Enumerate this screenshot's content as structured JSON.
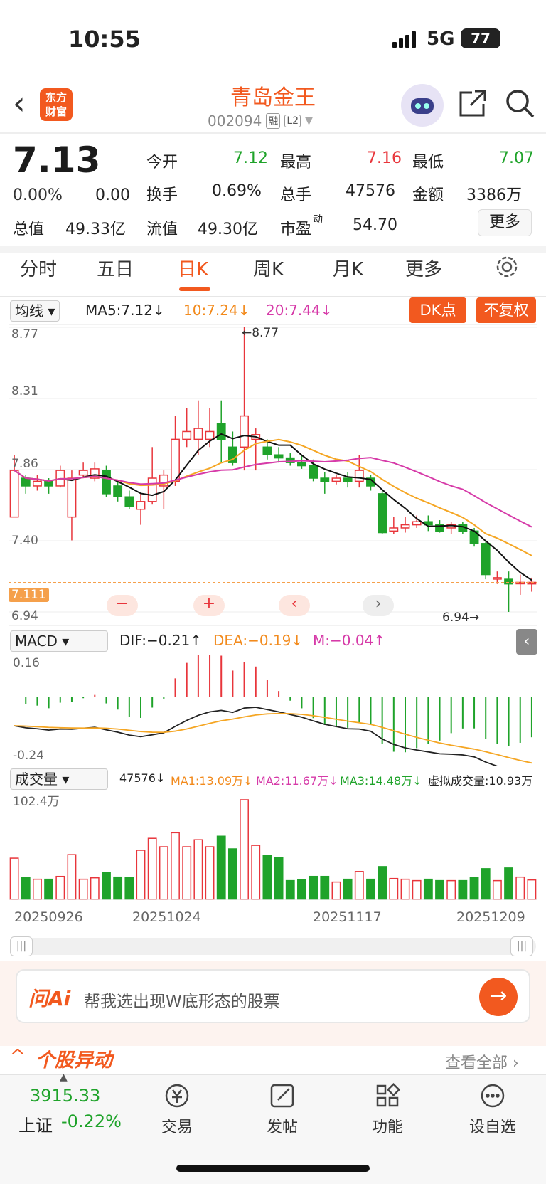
{
  "status_bar": {
    "time": "10:55",
    "network": "5G",
    "battery": "77"
  },
  "header": {
    "logo_line1": "东方",
    "logo_line2": "财富",
    "title": "青岛金王",
    "code": "002094",
    "tag1": "融",
    "tag2": "L2"
  },
  "quote": {
    "price": "7.13",
    "change_pct": "0.00%",
    "change": "0.00",
    "open_label": "今开",
    "open": "7.12",
    "high_label": "最高",
    "high": "7.16",
    "low_label": "最低",
    "low": "7.07",
    "turnover_label": "换手",
    "turnover": "0.69%",
    "volume_label": "总手",
    "volume": "47576",
    "amount_label": "金额",
    "amount": "3386万",
    "mcap_label": "总值",
    "mcap": "49.33亿",
    "float_label": "流值",
    "float_cap": "49.30亿",
    "pe_label": "市盈",
    "pe_sup": "动",
    "pe": "54.70",
    "more_button": "更多"
  },
  "tabs": [
    "分时",
    "五日",
    "日K",
    "周K",
    "月K",
    "更多"
  ],
  "active_tab": "日K",
  "ma_bar": {
    "select": "均线",
    "ma5": "MA5:7.12↓",
    "ma10": "10:7.24↓",
    "ma20": "20:7.44↓",
    "dk_button": "DK点",
    "fuquan_button": "不复权"
  },
  "kline_axis": {
    "y_top": "8.77",
    "y2": "8.31",
    "y3": "7.86",
    "y4": "7.40",
    "y_bottom": "6.94",
    "high_mark": "←8.77",
    "low_mark": "6.94→",
    "current_price_tag": "7.111"
  },
  "macd": {
    "select": "MACD",
    "dif": "DIF:−0.21↑",
    "dea": "DEA:−0.19↓",
    "m": "M:−0.04↑",
    "y_top": "0.16",
    "y_bottom": "-0.24"
  },
  "volume": {
    "select": "成交量",
    "value": "47576↓",
    "ma1": "MA1:13.09万↓",
    "ma2": "MA2:11.67万↓",
    "ma3": "MA3:14.48万↓",
    "virtual": "虚拟成交量:10.93万",
    "y_top": "102.4万"
  },
  "dates": [
    "20250926",
    "20251024",
    "20251117",
    "20251209"
  ],
  "colors": {
    "up": "#e8353b",
    "down": "#1fa32a",
    "ma5": "#111111",
    "ma10": "#f5a623",
    "ma20": "#d63aa8",
    "brand": "#f2591f"
  },
  "chart_data": {
    "type": "candlestick",
    "ylim": [
      6.94,
      8.77
    ],
    "candles": [
      [
        7.55,
        7.85,
        7.95,
        7.55
      ],
      [
        7.8,
        7.75,
        7.82,
        7.7
      ],
      [
        7.75,
        7.78,
        7.82,
        7.72
      ],
      [
        7.78,
        7.75,
        7.8,
        7.7
      ],
      [
        7.75,
        7.85,
        7.88,
        7.74
      ],
      [
        7.55,
        7.8,
        7.85,
        7.4
      ],
      [
        7.82,
        7.85,
        7.9,
        7.8
      ],
      [
        7.8,
        7.86,
        7.9,
        7.78
      ],
      [
        7.85,
        7.7,
        7.88,
        7.68
      ],
      [
        7.75,
        7.68,
        7.78,
        7.65
      ],
      [
        7.68,
        7.62,
        7.72,
        7.6
      ],
      [
        7.6,
        7.65,
        7.7,
        7.5
      ],
      [
        7.65,
        7.8,
        8.0,
        7.63
      ],
      [
        7.75,
        7.82,
        7.85,
        7.6
      ],
      [
        7.78,
        8.05,
        8.2,
        7.75
      ],
      [
        8.05,
        8.1,
        8.25,
        8.0
      ],
      [
        8.05,
        8.12,
        8.3,
        7.95
      ],
      [
        8.05,
        8.1,
        8.25,
        8.0
      ],
      [
        8.15,
        8.05,
        8.3,
        7.9
      ],
      [
        8.0,
        7.9,
        8.1,
        7.88
      ],
      [
        8.0,
        8.2,
        8.77,
        7.85
      ],
      [
        8.05,
        8.08,
        8.12,
        7.85
      ],
      [
        8.0,
        7.95,
        8.05,
        7.92
      ],
      [
        7.95,
        7.93,
        8.0,
        7.9
      ],
      [
        7.93,
        7.9,
        7.96,
        7.88
      ],
      [
        7.9,
        7.88,
        7.95,
        7.86
      ],
      [
        7.88,
        7.8,
        7.92,
        7.78
      ],
      [
        7.8,
        7.78,
        7.84,
        7.7
      ],
      [
        7.78,
        7.8,
        7.82,
        7.76
      ],
      [
        7.8,
        7.78,
        7.84,
        7.74
      ],
      [
        7.78,
        7.85,
        7.95,
        7.74
      ],
      [
        7.8,
        7.75,
        7.82,
        7.72
      ],
      [
        7.7,
        7.45,
        7.72,
        7.44
      ],
      [
        7.46,
        7.48,
        7.55,
        7.44
      ],
      [
        7.48,
        7.5,
        7.55,
        7.45
      ],
      [
        7.5,
        7.52,
        7.56,
        7.48
      ],
      [
        7.52,
        7.5,
        7.56,
        7.46
      ],
      [
        7.5,
        7.46,
        7.53,
        7.45
      ],
      [
        7.48,
        7.5,
        7.52,
        7.44
      ],
      [
        7.5,
        7.46,
        7.52,
        7.44
      ],
      [
        7.46,
        7.38,
        7.48,
        7.36
      ],
      [
        7.38,
        7.18,
        7.4,
        7.15
      ],
      [
        7.16,
        7.16,
        7.2,
        7.12
      ],
      [
        7.15,
        7.12,
        7.2,
        6.94
      ],
      [
        7.13,
        7.13,
        7.18,
        7.05
      ],
      [
        7.12,
        7.13,
        7.16,
        7.07
      ]
    ],
    "macd_min": -0.24,
    "macd_max": 0.16,
    "volume_max": "102.4万"
  },
  "ai_bar": {
    "brand": "问Ai",
    "placeholder": "帮我选出现W底形态的股票"
  },
  "section": {
    "title": "个股异动",
    "link": "查看全部"
  },
  "bottom_bar": {
    "index_value": "3915.33",
    "index_name": "上证",
    "index_change": "-0.22%",
    "trade": "交易",
    "post": "发帖",
    "func": "功能",
    "watch": "设自选"
  }
}
